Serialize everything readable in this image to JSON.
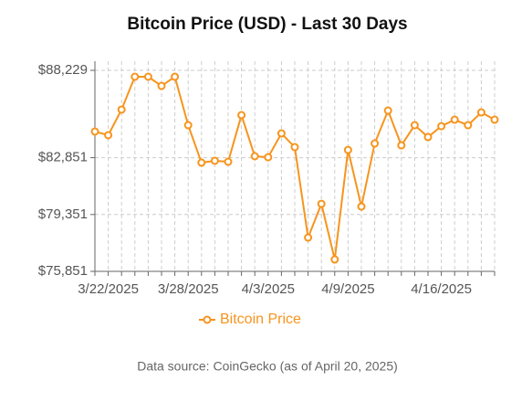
{
  "chart_data": {
    "type": "line",
    "title": "Bitcoin Price (USD) - Last 30 Days",
    "categories": [
      null,
      "3/22/2025",
      null,
      null,
      null,
      null,
      null,
      "3/28/2025",
      null,
      null,
      null,
      null,
      null,
      "4/3/2025",
      null,
      null,
      null,
      null,
      null,
      "4/9/2025",
      null,
      null,
      null,
      null,
      null,
      null,
      "4/16/2025",
      null,
      null,
      null,
      null
    ],
    "series": [
      {
        "name": "Bitcoin Price",
        "color": "#f7941d",
        "values": [
          84460,
          84235,
          85810,
          87835,
          87835,
          87270,
          87835,
          84850,
          82545,
          82660,
          82600,
          85470,
          82940,
          82880,
          84345,
          83500,
          77930,
          80010,
          76580,
          83330,
          79840,
          83725,
          85750,
          83610,
          84850,
          84120,
          84790,
          85190,
          84850,
          85640,
          85190
        ]
      }
    ],
    "ylim": [
      75851,
      88229
    ],
    "yticks": [
      {
        "value": 75851,
        "label": "$75,851"
      },
      {
        "value": 79351,
        "label": "$79,351"
      },
      {
        "value": 82851,
        "label": "$82,851"
      },
      {
        "value": 88229,
        "label": "$88,229"
      }
    ],
    "grid": true,
    "note": "Data source: CoinGecko (as of April 20, 2025)"
  }
}
